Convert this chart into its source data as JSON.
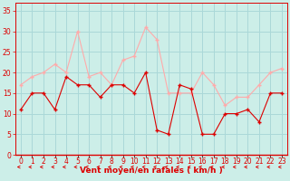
{
  "x": [
    0,
    1,
    2,
    3,
    4,
    5,
    6,
    7,
    8,
    9,
    10,
    11,
    12,
    13,
    14,
    15,
    16,
    17,
    18,
    19,
    20,
    21,
    22,
    23
  ],
  "vent_moyen": [
    11,
    15,
    15,
    11,
    19,
    17,
    17,
    14,
    17,
    17,
    15,
    20,
    6,
    5,
    17,
    16,
    5,
    5,
    10,
    10,
    11,
    8,
    15,
    15
  ],
  "rafales": [
    17,
    19,
    20,
    22,
    20,
    30,
    19,
    20,
    17,
    23,
    24,
    31,
    28,
    15,
    15,
    15,
    20,
    17,
    12,
    14,
    14,
    17,
    20,
    21
  ],
  "bg_color": "#cceee8",
  "grid_color": "#aad8d8",
  "line_color_moyen": "#dd0000",
  "line_color_rafales": "#ffaaaa",
  "xlabel": "Vent moyen/en rafales ( km/h )",
  "ylim": [
    0,
    37
  ],
  "yticks": [
    0,
    5,
    10,
    15,
    20,
    25,
    30,
    35
  ],
  "tick_fontsize": 5.5,
  "xlabel_fontsize": 6.5
}
